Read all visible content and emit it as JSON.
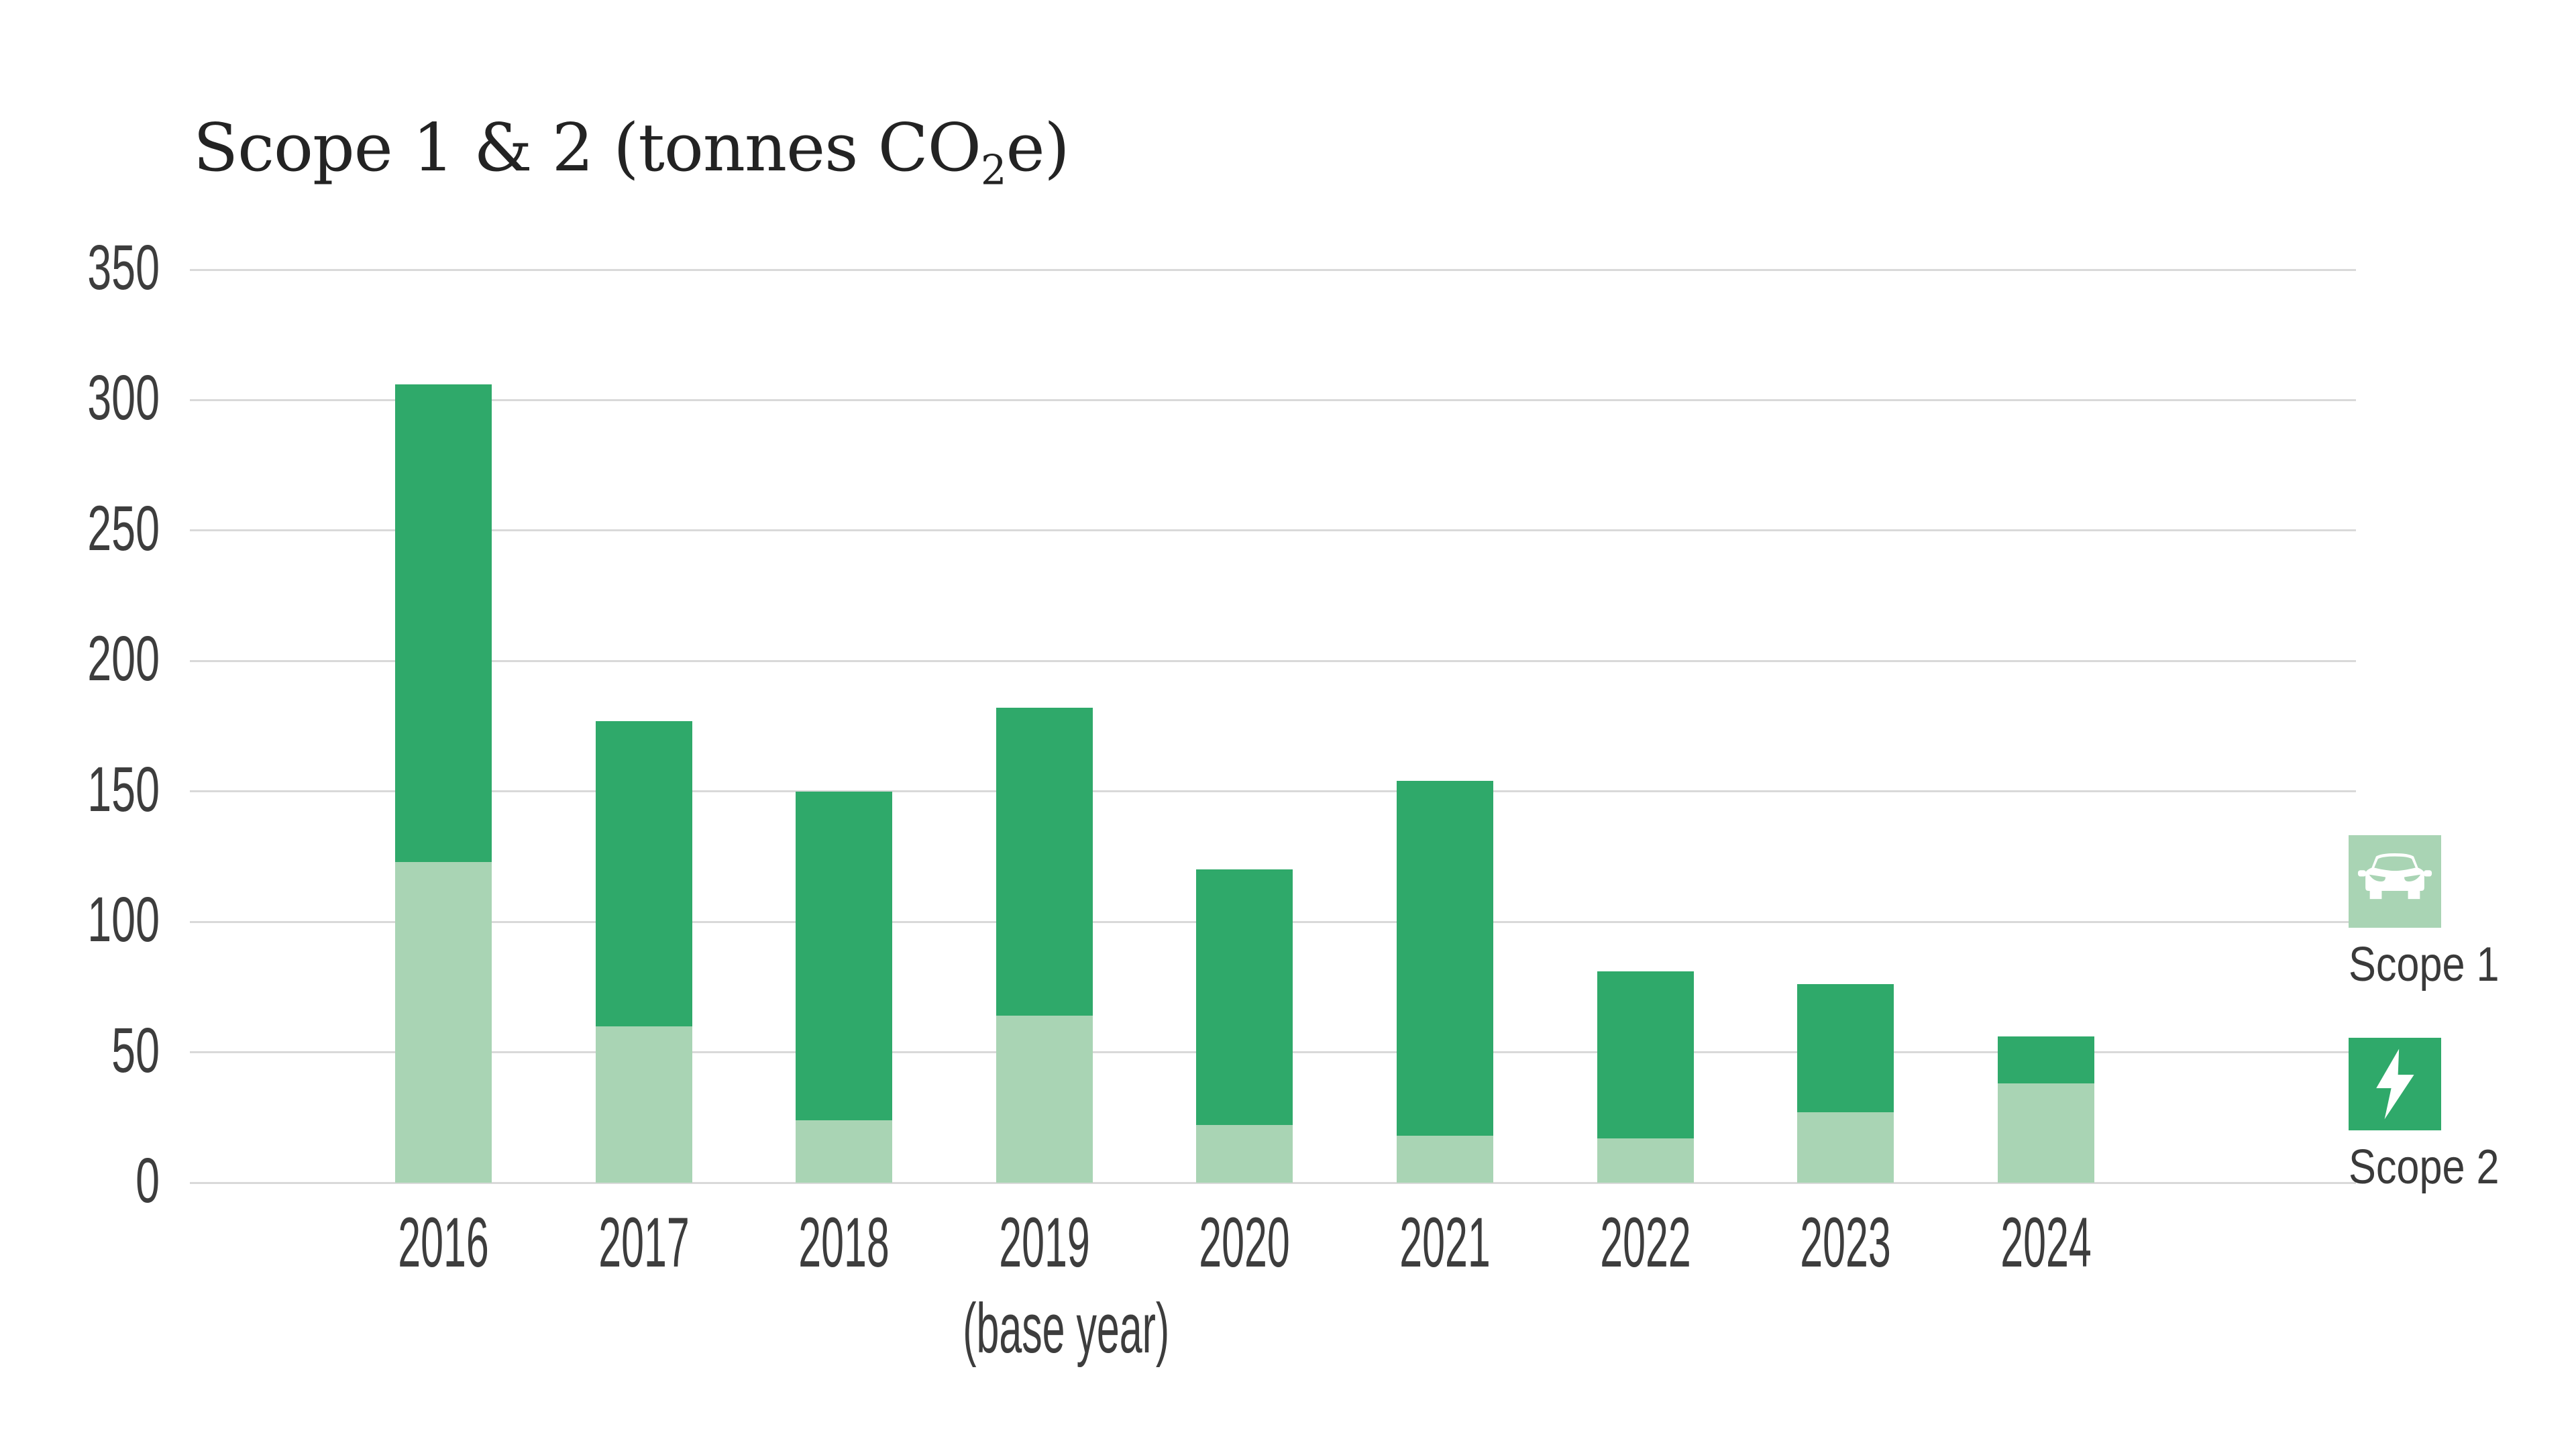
{
  "title": {
    "text": "Scope 1 & 2 (tonnes CO₂e)",
    "prefix": "Scope 1 & 2 (tonnes CO",
    "sub": "2",
    "suffix": "e)"
  },
  "colors": {
    "scope1": "#A9D4B4",
    "scope2": "#2FA96A",
    "gridline": "#D9D9D9",
    "axis_text": "#3D3D3D",
    "title_text": "#232323",
    "background": "#FFFFFF",
    "icon_glyph": "#FFFFFF"
  },
  "legend": {
    "items": [
      {
        "label": "Scope 1",
        "icon": "car-icon",
        "color": "#A9D4B4"
      },
      {
        "label": "Scope 2",
        "icon": "lightning-icon",
        "color": "#2FA96A"
      }
    ]
  },
  "chart_data": {
    "type": "bar",
    "stacked": true,
    "title": "Scope 1 & 2 (tonnes CO₂e)",
    "categories": [
      "2016",
      "2017",
      "2018",
      "2019",
      "2020",
      "2021",
      "2022",
      "2023",
      "2024"
    ],
    "x_sub_label": {
      "category_index": 3,
      "text": "(base year)"
    },
    "series": [
      {
        "name": "Scope 1",
        "color": "#A9D4B4",
        "values": [
          123,
          60,
          24,
          64,
          22,
          18,
          17,
          27,
          38
        ]
      },
      {
        "name": "Scope 2",
        "color": "#2FA96A",
        "values": [
          183,
          117,
          126,
          118,
          98,
          136,
          64,
          49,
          18
        ]
      }
    ],
    "totals": [
      306,
      177,
      150,
      182,
      120,
      154,
      81,
      76,
      56
    ],
    "xlabel": "",
    "ylabel": "",
    "ylim": [
      0,
      350
    ],
    "ytick_step": 50,
    "yticks": [
      "350",
      "300",
      "250",
      "200",
      "150",
      "100",
      "50",
      "0"
    ],
    "grid": "horizontal",
    "legend_position": "right"
  }
}
